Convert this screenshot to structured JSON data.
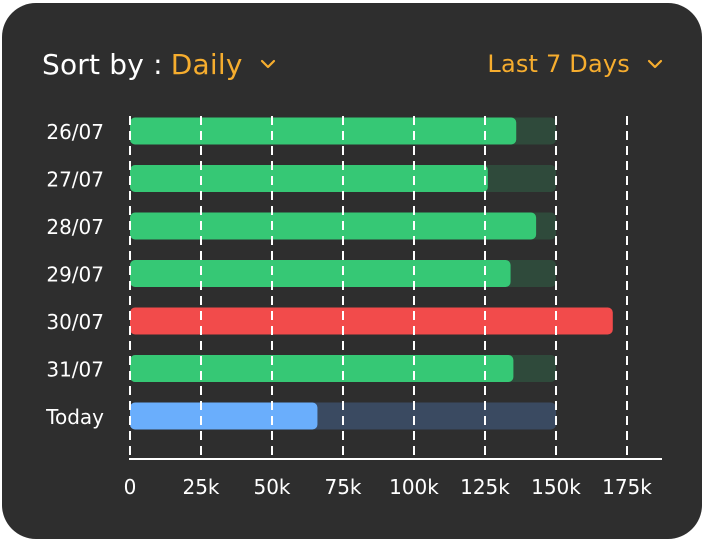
{
  "header": {
    "sort_label": "Sort by :",
    "sort_value": "Daily",
    "period_value": "Last 7 Days",
    "dropdown_icon": "chevron-down-icon"
  },
  "colors": {
    "background": "#2e2e2e",
    "accent": "#f6ad2e",
    "bar_normal": "#36c875",
    "track_normal": "#2f4a3b",
    "bar_over": "#f24b4b",
    "bar_today": "#6aaefc",
    "track_today": "#3a4a61",
    "text": "#ffffff",
    "grid": "#ffffff"
  },
  "chart_data": {
    "type": "bar",
    "orientation": "horizontal",
    "categories": [
      "26/07",
      "27/07",
      "28/07",
      "29/07",
      "30/07",
      "31/07",
      "Today"
    ],
    "values": [
      136000,
      126000,
      143000,
      134000,
      170000,
      135000,
      66000
    ],
    "target": 150000,
    "bar_status": [
      "normal",
      "normal",
      "normal",
      "normal",
      "over",
      "normal",
      "today"
    ],
    "xlim": [
      0,
      175000
    ],
    "xticks": [
      0,
      25000,
      50000,
      75000,
      100000,
      125000,
      150000,
      175000
    ],
    "xtick_labels": [
      "0",
      "25k",
      "50k",
      "75k",
      "100k",
      "125k",
      "150k",
      "175k"
    ],
    "grid": "dashed vertical",
    "legend": "none"
  }
}
